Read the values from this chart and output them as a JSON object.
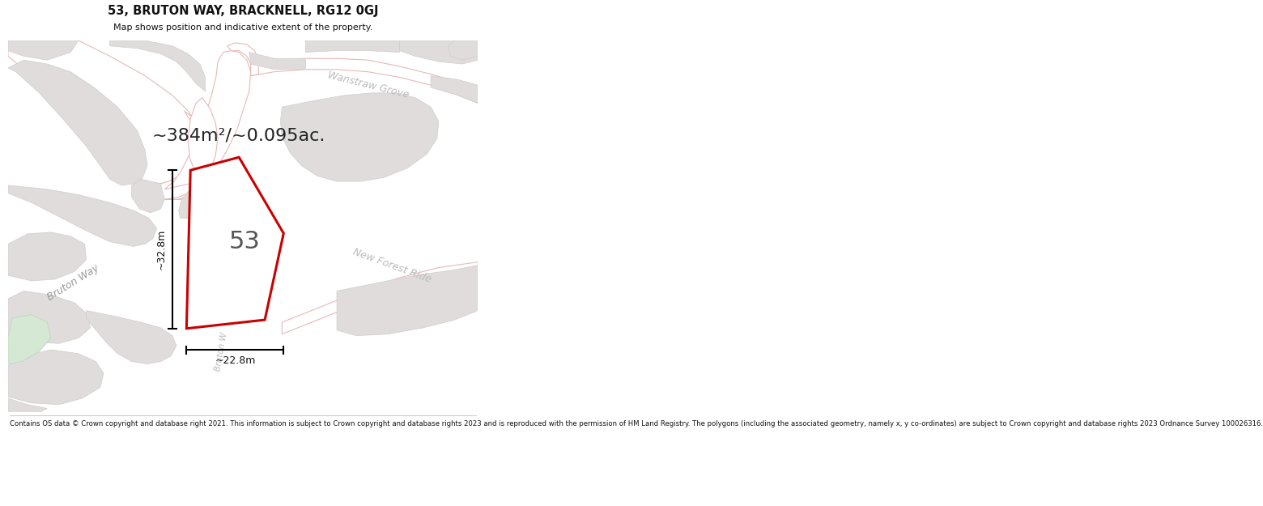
{
  "title_line1": "53, BRUTON WAY, BRACKNELL, RG12 0GJ",
  "title_line2": "Map shows position and indicative extent of the property.",
  "area_text": "~384m²/~0.095ac.",
  "label_53": "53",
  "dim_height": "~32.8m",
  "dim_width": "~22.8m",
  "road_bruton_way": "Bruton Way",
  "road_bruton_w_diag": "Bruton W",
  "road_wanstraw": "Wanstraw Grove",
  "road_new_forest": "New Forest Ride",
  "footer_text": "Contains OS data © Crown copyright and database right 2021. This information is subject to Crown copyright and database rights 2023 and is reproduced with the permission of HM Land Registry. The polygons (including the associated geometry, namely x, y co-ordinates) are subject to Crown copyright and database rights 2023 Ordnance Survey 100026316.",
  "bg_color": "#f5f3f3",
  "map_bg": "#f5f3f3",
  "road_fill": "#ffffff",
  "road_edge": "#e8b8b8",
  "block_fill": "#e0dcdc",
  "block_edge": "#d0cccc",
  "plot_fill": "#ffffff",
  "plot_stroke": "#cc0000",
  "green_fill": "#d4e8d4",
  "green_edge": "#b8d4b8",
  "divider_color": "#cccccc",
  "title_color": "#111111",
  "footer_color": "#111111",
  "dim_color": "#111111",
  "label_color": "#444444",
  "road_text_color": "#aaaaaa"
}
